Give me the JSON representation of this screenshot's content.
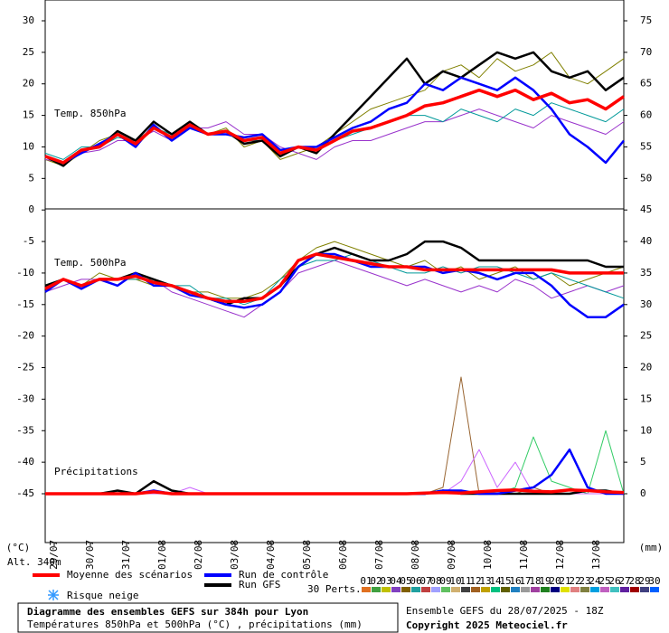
{
  "chart_data": {
    "type": "line",
    "title": "Diagramme des ensembles GEFS sur 384h pour Lyon",
    "subtitle": "Températures 850hPa et 500hPa (°C) , précipitations (mm)",
    "run_info": "Ensemble GEFS du 28/07/2025 - 18Z",
    "copyright": "Copyright 2025 Meteociel.fr",
    "y_unit": "(°C)",
    "y2_unit": "(mm)",
    "altitude": "Alt. 340m",
    "snow_label": "Risque neige",
    "perts_label": "30 Perts.",
    "x": [
      0,
      12,
      24,
      36,
      48,
      60,
      72,
      84,
      96,
      108,
      120,
      132,
      144,
      156,
      168,
      180,
      192,
      204,
      216,
      228,
      240,
      252,
      264,
      276,
      288,
      300,
      312,
      324,
      336,
      348,
      360,
      372,
      384
    ],
    "xlim": [
      0,
      384
    ],
    "xticks": [
      {
        "value": 6,
        "label": "29/07"
      },
      {
        "value": 30,
        "label": "30/07"
      },
      {
        "value": 54,
        "label": "31/07"
      },
      {
        "value": 78,
        "label": "01/08"
      },
      {
        "value": 102,
        "label": "02/08"
      },
      {
        "value": 126,
        "label": "03/08"
      },
      {
        "value": 150,
        "label": "04/08"
      },
      {
        "value": 174,
        "label": "05/08"
      },
      {
        "value": 198,
        "label": "06/08"
      },
      {
        "value": 222,
        "label": "07/08"
      },
      {
        "value": 246,
        "label": "08/08"
      },
      {
        "value": 270,
        "label": "09/08"
      },
      {
        "value": 294,
        "label": "10/08"
      },
      {
        "value": 318,
        "label": "11/08"
      },
      {
        "value": 342,
        "label": "12/08"
      },
      {
        "value": 366,
        "label": "13/08"
      }
    ],
    "ylim": [
      -52.5,
      30
    ],
    "yticks": [
      30,
      25,
      20,
      15,
      10,
      5,
      0,
      -5,
      -10,
      -15,
      -20,
      -25,
      -30,
      -35,
      -40,
      -45
    ],
    "y2lim": [
      -7.5,
      75
    ],
    "y2ticks": [
      75,
      70,
      65,
      60,
      55,
      50,
      45,
      40,
      35,
      30,
      25,
      20,
      15,
      10,
      5,
      0
    ],
    "legend": [
      {
        "name": "Moyenne des scénarios",
        "color": "#ff0000"
      },
      {
        "name": "Run de contrôle",
        "color": "#0000ff"
      },
      {
        "name": "Run GFS",
        "color": "#000000"
      }
    ],
    "perts": [
      {
        "name": "01",
        "color": "#e07020"
      },
      {
        "name": "02",
        "color": "#40a040"
      },
      {
        "name": "03",
        "color": "#c0c000"
      },
      {
        "name": "04",
        "color": "#8040c0"
      },
      {
        "name": "05",
        "color": "#806000"
      },
      {
        "name": "06",
        "color": "#20a0a0"
      },
      {
        "name": "07",
        "color": "#c04040"
      },
      {
        "name": "08",
        "color": "#a0a0ff"
      },
      {
        "name": "09",
        "color": "#60c060"
      },
      {
        "name": "10",
        "color": "#d0b070"
      },
      {
        "name": "11",
        "color": "#404040"
      },
      {
        "name": "12",
        "color": "#a06020"
      },
      {
        "name": "13",
        "color": "#c0a000"
      },
      {
        "name": "14",
        "color": "#00c080"
      },
      {
        "name": "15",
        "color": "#606000"
      },
      {
        "name": "16",
        "color": "#2080c0"
      },
      {
        "name": "17",
        "color": "#9a9a9a"
      },
      {
        "name": "18",
        "color": "#a040a0"
      },
      {
        "name": "19",
        "color": "#208020"
      },
      {
        "name": "20",
        "color": "#000080"
      },
      {
        "name": "21",
        "color": "#e0e000"
      },
      {
        "name": "22",
        "color": "#e08080"
      },
      {
        "name": "23",
        "color": "#808040"
      },
      {
        "name": "24",
        "color": "#00a0e0"
      },
      {
        "name": "25",
        "color": "#c060c0"
      },
      {
        "name": "26",
        "color": "#40c0c0"
      },
      {
        "name": "27",
        "color": "#6020a0"
      },
      {
        "name": "28",
        "color": "#a00000"
      },
      {
        "name": "29",
        "color": "#404080"
      },
      {
        "name": "30",
        "color": "#0060ff"
      }
    ],
    "panels": [
      {
        "label": "Temp. 850hPa",
        "axis": "y",
        "members": [
          {
            "color": "#808000",
            "values": [
              8,
              7,
              9,
              11,
              12,
              10,
              13,
              12,
              14,
              12,
              13,
              10,
              11,
              8,
              9,
              10,
              12,
              14,
              16,
              17,
              18,
              19,
              22,
              23,
              21,
              24,
              22,
              23,
              25,
              21,
              20,
              22,
              24
            ]
          },
          {
            "color": "#9933cc",
            "values": [
              8,
              7.5,
              9,
              9.5,
              11,
              11,
              12.5,
              11,
              13,
              13,
              14,
              12,
              12,
              10,
              9,
              8,
              10,
              11,
              11,
              12,
              13,
              14,
              14,
              15,
              16,
              15,
              14,
              13,
              15,
              14,
              13,
              12,
              14
            ]
          },
          {
            "color": "#009999",
            "values": [
              9,
              8,
              10,
              10,
              11.5,
              11,
              13,
              12,
              13,
              12,
              12,
              11,
              11,
              9,
              10,
              10,
              11,
              12,
              13,
              14,
              15,
              15,
              14,
              16,
              15,
              14,
              16,
              15,
              17,
              16,
              15,
              14,
              16
            ]
          }
        ],
        "gfs": [
          8.5,
          7,
          9.5,
          10,
          12.5,
          11,
          14,
          12,
          14,
          12,
          12.5,
          10.5,
          11,
          8.5,
          10,
          9,
          12,
          15,
          18,
          21,
          24,
          20,
          22,
          21,
          23,
          25,
          24,
          25,
          22,
          21,
          22,
          19,
          21
        ],
        "control": [
          8.5,
          7.5,
          9,
          10.5,
          12,
          10,
          13.5,
          11,
          13,
          12,
          12,
          11.5,
          12,
          9.5,
          10,
          10,
          11.5,
          13,
          14,
          16,
          17,
          20,
          19,
          21,
          20,
          19,
          21,
          19,
          16,
          12,
          10,
          7.5,
          11
        ],
        "mean": [
          8.5,
          7.5,
          9.5,
          10,
          12,
          10.5,
          13,
          11.5,
          13.5,
          12,
          12.5,
          11,
          11.5,
          9,
          10,
          9.5,
          11,
          12.5,
          13,
          14,
          15,
          16.5,
          17,
          18,
          19,
          18,
          19,
          17.5,
          18.5,
          17,
          17.5,
          16,
          18
        ]
      },
      {
        "label": "Temp. 500hPa",
        "axis": "y",
        "members": [
          {
            "color": "#808000",
            "values": [
              -12,
              -11,
              -12,
              -10,
              -11,
              -11,
              -12,
              -12,
              -13,
              -13,
              -14,
              -14,
              -13,
              -11,
              -8,
              -6,
              -5,
              -6,
              -7,
              -8,
              -9,
              -8,
              -10,
              -9,
              -11,
              -10,
              -9,
              -11,
              -10,
              -12,
              -11,
              -10,
              -9
            ]
          },
          {
            "color": "#9933cc",
            "values": [
              -13,
              -12,
              -11,
              -11,
              -12,
              -10,
              -11,
              -13,
              -14,
              -15,
              -16,
              -17,
              -15,
              -13,
              -10,
              -9,
              -8,
              -9,
              -10,
              -11,
              -12,
              -11,
              -12,
              -13,
              -12,
              -13,
              -11,
              -12,
              -14,
              -13,
              -12,
              -13,
              -12
            ]
          },
          {
            "color": "#009999",
            "values": [
              -12,
              -11,
              -12,
              -11,
              -11,
              -11,
              -11,
              -12,
              -12,
              -14,
              -14,
              -15,
              -14,
              -11,
              -9,
              -8,
              -8,
              -7,
              -8,
              -9,
              -10,
              -10,
              -9,
              -10,
              -9,
              -9,
              -10,
              -11,
              -10,
              -11,
              -12,
              -13,
              -14
            ]
          }
        ],
        "gfs": [
          -12,
          -11,
          -12,
          -11,
          -11,
          -10,
          -11,
          -12,
          -13,
          -14,
          -15,
          -14,
          -14,
          -12,
          -9,
          -7,
          -6,
          -7,
          -8,
          -8,
          -7,
          -5,
          -5,
          -6,
          -8,
          -8,
          -8,
          -8,
          -8,
          -8,
          -8,
          -9,
          -9
        ],
        "control": [
          -13,
          -11,
          -12.5,
          -11,
          -12,
          -10,
          -12,
          -12,
          -13.5,
          -14,
          -15,
          -15.5,
          -15,
          -13,
          -9,
          -7,
          -7,
          -8,
          -9,
          -9,
          -9,
          -9,
          -10,
          -9.5,
          -10,
          -11,
          -10,
          -10,
          -12,
          -15,
          -17,
          -17,
          -15
        ],
        "mean": [
          -12.5,
          -11,
          -12,
          -11,
          -11,
          -10.5,
          -11.5,
          -12,
          -13,
          -14,
          -14.5,
          -14.5,
          -14,
          -12,
          -8,
          -7,
          -7.5,
          -8,
          -8.5,
          -9,
          -9,
          -9.5,
          -9.5,
          -9.5,
          -9.5,
          -9.5,
          -9.5,
          -9.5,
          -9.5,
          -10,
          -10,
          -10,
          -10
        ]
      },
      {
        "label": "Précipitations",
        "axis": "y2",
        "members": [
          {
            "color": "#996633",
            "values": [
              0,
              0,
              0,
              0,
              0,
              0,
              0,
              0,
              0,
              0,
              0,
              0,
              0,
              0,
              0,
              0,
              0,
              0,
              0,
              0,
              0,
              0,
              1,
              18.5,
              0,
              0,
              0,
              1,
              0,
              0,
              0,
              0,
              0
            ]
          },
          {
            "color": "#33cc66",
            "values": [
              0,
              0,
              0,
              0,
              0,
              0,
              0,
              0,
              0,
              0,
              0,
              0,
              0,
              0,
              0,
              0,
              0,
              0,
              0,
              0,
              0,
              0,
              0,
              0,
              0,
              0,
              1,
              9,
              2,
              1,
              0,
              10,
              0
            ]
          },
          {
            "color": "#cc66ff",
            "values": [
              0,
              0,
              0,
              0,
              0,
              0,
              0,
              0,
              1,
              0,
              0,
              0,
              0,
              0,
              0,
              0,
              0,
              0,
              0,
              0,
              0,
              0,
              0,
              2,
              7,
              1,
              5,
              0,
              0,
              0,
              0,
              0,
              0
            ]
          }
        ],
        "gfs": [
          0,
          0,
          0,
          0,
          0.5,
          0,
          2,
          0.5,
          0,
          0,
          0,
          0,
          0,
          0,
          0,
          0,
          0,
          0,
          0,
          0,
          0,
          0,
          0.5,
          0,
          0,
          0,
          0,
          0,
          0,
          0,
          0.5,
          0.5,
          0
        ],
        "control": [
          0,
          0,
          0,
          0,
          0,
          0,
          0.5,
          0,
          0,
          0,
          0,
          0,
          0,
          0,
          0,
          0,
          0,
          0,
          0,
          0,
          0,
          0,
          0.5,
          0.5,
          0,
          0,
          0.5,
          1,
          3,
          7,
          1,
          0,
          0
        ],
        "mean": [
          0,
          0,
          0,
          0,
          0,
          0,
          0.3,
          0,
          0,
          0,
          0,
          0,
          0,
          0,
          0,
          0,
          0,
          0,
          0,
          0,
          0,
          0.1,
          0.2,
          0.1,
          0.3,
          0.5,
          0.6,
          0.4,
          0.3,
          0.6,
          0.5,
          0.3,
          0.2
        ]
      }
    ]
  }
}
